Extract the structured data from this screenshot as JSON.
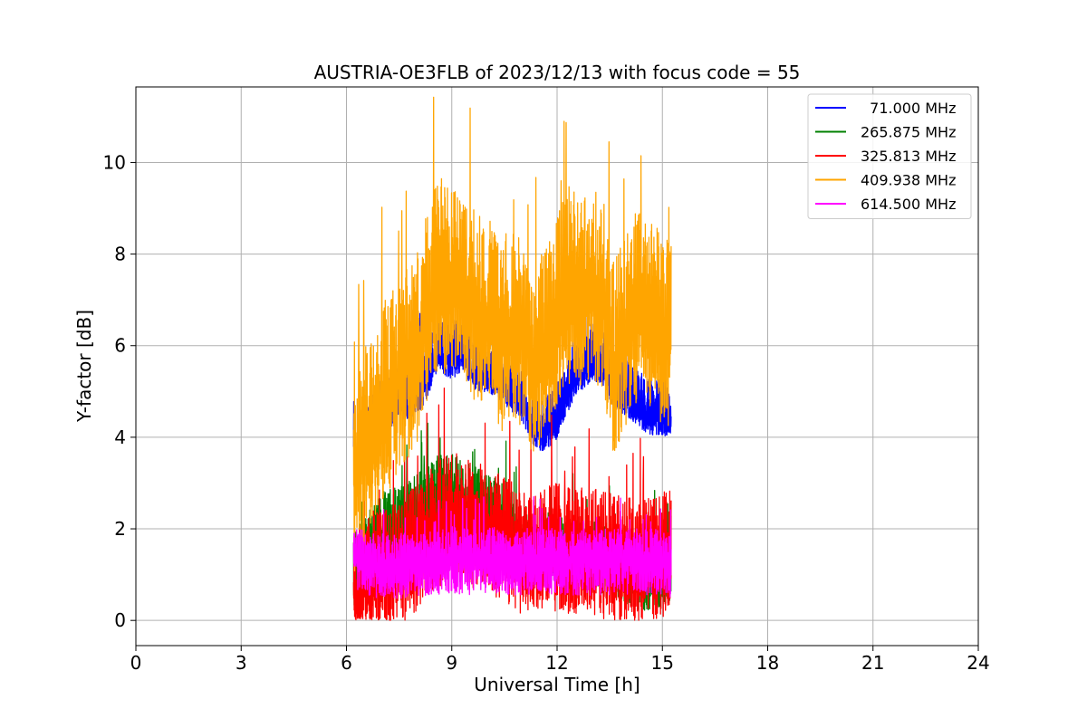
{
  "chart_data": {
    "type": "line",
    "title": "AUSTRIA-OE3FLB of 2023/12/13 with focus code = 55",
    "xlabel": "Universal Time [h]",
    "ylabel": "Y-factor [dB]",
    "xlim": [
      0,
      24
    ],
    "ylim": [
      -0.55,
      11.65
    ],
    "xticks": [
      0,
      3,
      6,
      9,
      12,
      15,
      18,
      21,
      24
    ],
    "yticks": [
      0,
      2,
      4,
      6,
      8,
      10
    ],
    "xtick_labels": [
      "0",
      "3",
      "6",
      "9",
      "12",
      "15",
      "18",
      "21",
      "24"
    ],
    "ytick_labels": [
      "0",
      "2",
      "4",
      "6",
      "8",
      "10"
    ],
    "grid": true,
    "legend_position": "top-right",
    "series": [
      {
        "name": "  71.000 MHz",
        "color": "#0000ff",
        "base": [
          [
            6.2,
            3.2
          ],
          [
            6.6,
            3.8
          ],
          [
            7.0,
            4.4
          ],
          [
            7.5,
            4.7
          ],
          [
            8.0,
            4.8
          ],
          [
            8.3,
            5.2
          ],
          [
            8.6,
            5.8
          ],
          [
            9.0,
            5.6
          ],
          [
            9.3,
            5.8
          ],
          [
            9.6,
            5.4
          ],
          [
            10.0,
            5.3
          ],
          [
            10.3,
            5.2
          ],
          [
            10.6,
            5.0
          ],
          [
            11.0,
            4.7
          ],
          [
            11.3,
            4.2
          ],
          [
            11.6,
            4.0
          ],
          [
            12.0,
            4.3
          ],
          [
            12.3,
            4.9
          ],
          [
            12.6,
            5.3
          ],
          [
            13.0,
            5.6
          ],
          [
            13.3,
            5.5
          ],
          [
            13.6,
            5.0
          ],
          [
            14.0,
            4.8
          ],
          [
            14.3,
            4.6
          ],
          [
            14.6,
            4.4
          ],
          [
            15.0,
            4.4
          ],
          [
            15.25,
            4.3
          ]
        ],
        "noise": [
          0.9,
          0.35
        ]
      },
      {
        "name": "265.875 MHz",
        "color": "#008000",
        "base": [
          [
            6.2,
            0.9
          ],
          [
            6.6,
            1.4
          ],
          [
            7.0,
            1.8
          ],
          [
            7.5,
            2.0
          ],
          [
            8.0,
            2.2
          ],
          [
            8.3,
            2.4
          ],
          [
            8.6,
            2.6
          ],
          [
            9.0,
            2.7
          ],
          [
            9.3,
            2.5
          ],
          [
            9.6,
            2.4
          ],
          [
            10.0,
            2.2
          ],
          [
            10.5,
            2.0
          ],
          [
            11.0,
            1.6
          ],
          [
            11.5,
            1.4
          ],
          [
            12.0,
            1.3
          ],
          [
            12.5,
            1.3
          ],
          [
            13.0,
            1.2
          ],
          [
            13.5,
            1.2
          ],
          [
            14.0,
            0.9
          ],
          [
            14.5,
            0.8
          ],
          [
            15.0,
            0.9
          ],
          [
            15.25,
            1.0
          ]
        ],
        "noise": [
          1.0,
          0.6
        ]
      },
      {
        "name": "325.813 MHz",
        "color": "#ff0000",
        "base": [
          [
            6.2,
            0.5
          ],
          [
            6.6,
            0.9
          ],
          [
            7.0,
            1.0
          ],
          [
            7.5,
            1.1
          ],
          [
            8.0,
            1.5
          ],
          [
            8.3,
            1.8
          ],
          [
            8.6,
            2.0
          ],
          [
            9.0,
            2.2
          ],
          [
            9.3,
            2.1
          ],
          [
            9.6,
            2.0
          ],
          [
            10.0,
            1.9
          ],
          [
            10.5,
            1.7
          ],
          [
            11.0,
            1.4
          ],
          [
            11.5,
            1.5
          ],
          [
            12.0,
            1.5
          ],
          [
            12.5,
            1.4
          ],
          [
            13.0,
            1.4
          ],
          [
            13.5,
            1.3
          ],
          [
            14.0,
            1.2
          ],
          [
            14.5,
            1.2
          ],
          [
            15.0,
            1.3
          ],
          [
            15.25,
            1.5
          ]
        ],
        "noise": [
          1.5,
          1.3
        ]
      },
      {
        "name": "409.938 MHz",
        "color": "#ffa500",
        "base": [
          [
            6.2,
            3.0
          ],
          [
            6.6,
            3.8
          ],
          [
            7.0,
            4.6
          ],
          [
            7.5,
            5.2
          ],
          [
            8.0,
            5.8
          ],
          [
            8.3,
            6.6
          ],
          [
            8.6,
            7.4
          ],
          [
            9.0,
            7.3
          ],
          [
            9.3,
            7.0
          ],
          [
            9.6,
            6.8
          ],
          [
            10.0,
            6.6
          ],
          [
            10.3,
            6.0
          ],
          [
            10.6,
            6.3
          ],
          [
            11.0,
            6.0
          ],
          [
            11.3,
            5.6
          ],
          [
            11.6,
            5.8
          ],
          [
            12.0,
            6.6
          ],
          [
            12.3,
            7.2
          ],
          [
            12.6,
            7.0
          ],
          [
            13.0,
            7.2
          ],
          [
            13.3,
            7.0
          ],
          [
            13.6,
            5.6
          ],
          [
            14.0,
            6.2
          ],
          [
            14.3,
            6.8
          ],
          [
            14.6,
            6.6
          ],
          [
            15.0,
            6.2
          ],
          [
            15.25,
            6.0
          ]
        ],
        "noise": [
          2.3,
          2.0
        ]
      },
      {
        "name": "614.500 MHz",
        "color": "#ff00ff",
        "base": [
          [
            6.2,
            1.4
          ],
          [
            6.6,
            1.3
          ],
          [
            7.0,
            1.2
          ],
          [
            7.5,
            1.2
          ],
          [
            8.0,
            1.25
          ],
          [
            8.5,
            1.3
          ],
          [
            9.0,
            1.35
          ],
          [
            9.5,
            1.3
          ],
          [
            10.0,
            1.35
          ],
          [
            10.5,
            1.3
          ],
          [
            11.0,
            1.3
          ],
          [
            11.5,
            1.35
          ],
          [
            12.0,
            1.3
          ],
          [
            12.5,
            1.3
          ],
          [
            13.0,
            1.3
          ],
          [
            13.5,
            1.3
          ],
          [
            14.0,
            1.3
          ],
          [
            14.5,
            1.3
          ],
          [
            15.0,
            1.3
          ],
          [
            15.25,
            1.2
          ]
        ],
        "noise": [
          0.7,
          0.75
        ]
      }
    ]
  }
}
